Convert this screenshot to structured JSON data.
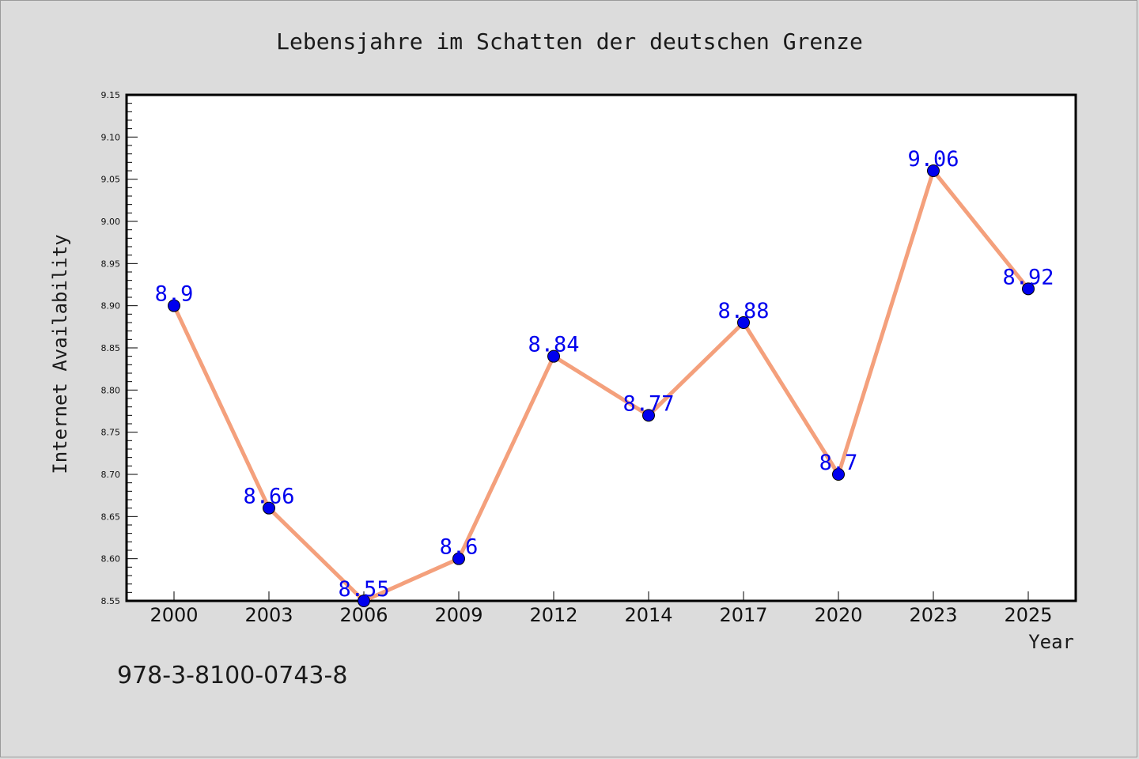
{
  "chart_data": {
    "type": "line",
    "title": "Lebensjahre im Schatten der deutschen Grenze",
    "xlabel": "Year",
    "ylabel": "Internet Availability",
    "categories": [
      "2000",
      "2003",
      "2006",
      "2009",
      "2012",
      "2014",
      "2017",
      "2020",
      "2023",
      "2025"
    ],
    "values": [
      8.9,
      8.66,
      8.55,
      8.6,
      8.84,
      8.77,
      8.88,
      8.7,
      9.06,
      8.92
    ],
    "data_labels": [
      "8.9",
      "8.66",
      "8.55",
      "8.6",
      "8.84",
      "8.77",
      "8.88",
      "8.7",
      "9.06",
      "8.92"
    ],
    "ylim": [
      8.55,
      9.15
    ],
    "y_ticks": [
      "8.55",
      "8.60",
      "8.65",
      "8.70",
      "8.75",
      "8.80",
      "8.85",
      "8.90",
      "8.95",
      "9.00",
      "9.05",
      "9.10",
      "9.15"
    ],
    "grid": false,
    "legend": "none",
    "colors": {
      "line": "#f4a07c",
      "marker": "#0000ee",
      "label": "#0000ee",
      "plot_bg": "#ffffff",
      "page_bg": "#dcdcdc"
    }
  },
  "footer": {
    "isbn": "978-3-8100-0743-8"
  }
}
